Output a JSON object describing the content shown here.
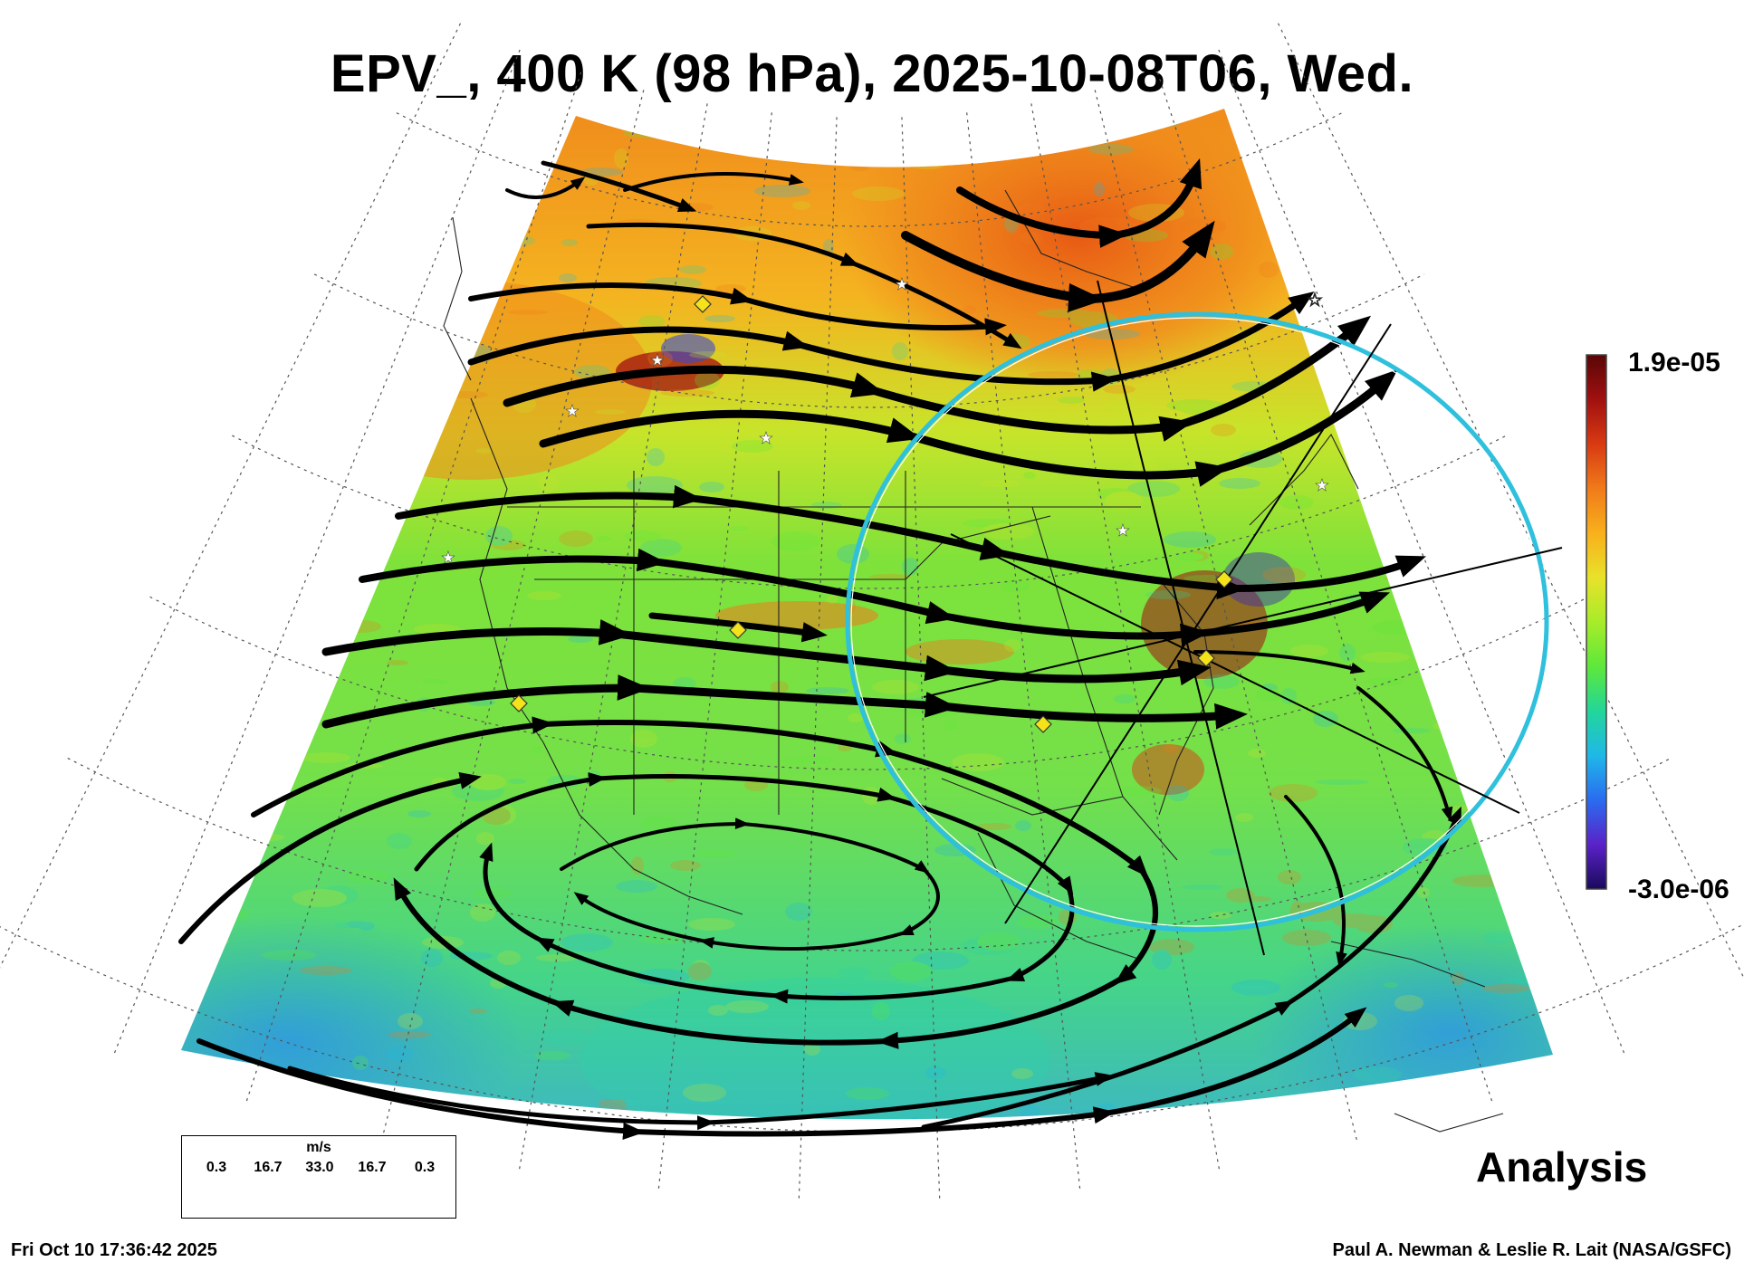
{
  "title": "EPV_, 400 K (98 hPa), 2025-10-08T06, Wed.",
  "colorbar": {
    "max_label": "1.9e-05",
    "min_label": "-3.0e-06",
    "colors": [
      "#1a0a5c",
      "#5a22c8",
      "#2a6cf0",
      "#1fb8e8",
      "#22d69a",
      "#5ee83a",
      "#a8ec2a",
      "#e8e22a",
      "#f8b01c",
      "#f07a1a",
      "#d83a12",
      "#a01010",
      "#5a0606"
    ]
  },
  "legend": {
    "units": "m/s",
    "values": [
      "0.3",
      "16.7",
      "33.0",
      "16.7",
      "0.3"
    ]
  },
  "analysis_label": "Analysis",
  "timestamp": "Fri Oct 10 17:36:42 2025",
  "credit": "Paul A. Newman & Leslie R. Lait (NASA/GSFC)",
  "colors": {
    "background_field": "#8ee83a",
    "ring": "#2ec0dc",
    "streamline": "#000000",
    "marker_diamond": "#f4e21a"
  },
  "icons": [
    "star-marker-icon",
    "diamond-marker-icon",
    "streamline-arrow-icon"
  ]
}
